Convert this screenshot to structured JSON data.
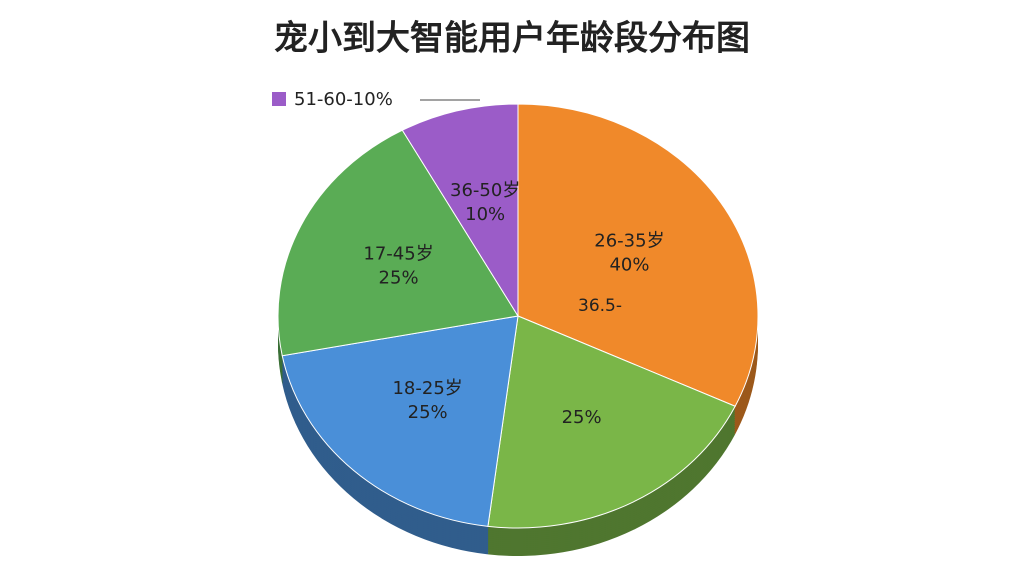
{
  "chart_data": {
    "type": "pie",
    "title": "宠小到大智能用户年龄段分布图",
    "categories": [
      "26-35岁",
      null,
      "18-25岁",
      "17-45岁",
      "36-50岁"
    ],
    "values": [
      40,
      25,
      25,
      25,
      10
    ],
    "value_labels": [
      "40%",
      "25%",
      "25%",
      "25%",
      "10%"
    ],
    "colors": [
      "#f0892a",
      "#7ab648",
      "#4a8fd8",
      "#5aac55",
      "#9b5cc8"
    ],
    "legend": {
      "label": "51-60-10%",
      "color": "#9b5cc8"
    },
    "annotation": "36.5-"
  }
}
